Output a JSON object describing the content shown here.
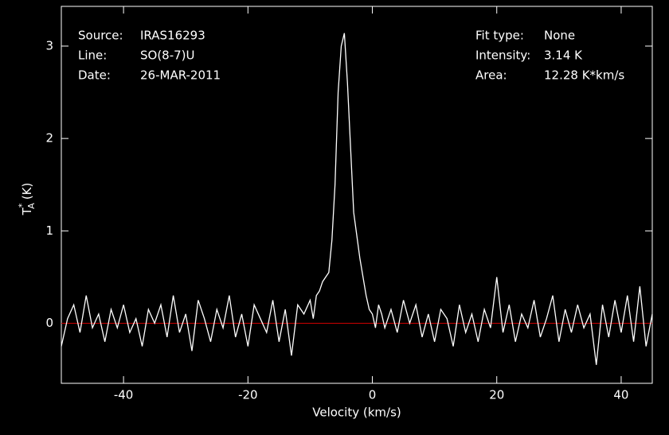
{
  "chart_data": {
    "type": "line",
    "xlabel": "Velocity (km/s)",
    "ylabel": {
      "symbol": "T",
      "superscript": "*",
      "subscript": "A",
      "unit": "(K)"
    },
    "annotations_left": [
      {
        "label": "Source:",
        "value": "IRAS16293"
      },
      {
        "label": "Line:",
        "value": "SO(8-7)U"
      },
      {
        "label": "Date:",
        "value": "26-MAR-2011"
      }
    ],
    "annotations_right": [
      {
        "label": "Fit type:",
        "value": "None"
      },
      {
        "label": "Intensity:",
        "value": "3.14 K"
      },
      {
        "label": "Area:",
        "value": "12.28 K*km/s"
      }
    ],
    "xlim": [
      -50,
      45
    ],
    "ylim": [
      -0.65,
      3.43
    ],
    "xticks": [
      -40,
      -20,
      0,
      20,
      40
    ],
    "yticks": [
      0,
      1,
      2,
      3
    ],
    "baseline": 0,
    "baseline_color": "#cc0000",
    "series": [
      {
        "color": "#ffffff",
        "x": [
          -50,
          -49,
          -48,
          -47,
          -46,
          -45,
          -44,
          -43,
          -42,
          -41,
          -40,
          -39,
          -38,
          -37,
          -36,
          -35,
          -34,
          -33,
          -32,
          -31,
          -30,
          -29,
          -28,
          -27,
          -26,
          -25,
          -24,
          -23,
          -22,
          -21,
          -20,
          -19,
          -18,
          -17,
          -16,
          -15,
          -14,
          -13,
          -12,
          -11,
          -10,
          -9.5,
          -9,
          -8.5,
          -8,
          -7.5,
          -7,
          -6.5,
          -6,
          -5.5,
          -5,
          -4.5,
          -4,
          -3.5,
          -3,
          -2.5,
          -2,
          -1.5,
          -1,
          -0.5,
          0,
          0.5,
          1,
          1.5,
          2,
          3,
          4,
          5,
          6,
          7,
          8,
          9,
          10,
          11,
          12,
          13,
          14,
          15,
          16,
          17,
          18,
          19,
          20,
          21,
          22,
          23,
          24,
          25,
          26,
          27,
          28,
          29,
          30,
          31,
          32,
          33,
          34,
          35,
          36,
          37,
          38,
          39,
          40,
          41,
          42,
          43,
          44,
          45
        ],
        "values": [
          -0.25,
          0.05,
          0.2,
          -0.1,
          0.3,
          -0.05,
          0.1,
          -0.2,
          0.15,
          -0.05,
          0.2,
          -0.1,
          0.05,
          -0.25,
          0.15,
          0.0,
          0.2,
          -0.15,
          0.3,
          -0.1,
          0.1,
          -0.3,
          0.25,
          0.05,
          -0.2,
          0.15,
          -0.05,
          0.3,
          -0.15,
          0.1,
          -0.25,
          0.2,
          0.05,
          -0.1,
          0.25,
          -0.2,
          0.15,
          -0.35,
          0.2,
          0.1,
          0.25,
          0.05,
          0.3,
          0.35,
          0.45,
          0.5,
          0.55,
          0.9,
          1.5,
          2.5,
          3.0,
          3.14,
          2.6,
          1.9,
          1.2,
          0.95,
          0.7,
          0.5,
          0.3,
          0.15,
          0.1,
          -0.05,
          0.2,
          0.1,
          -0.05,
          0.15,
          -0.1,
          0.25,
          0.0,
          0.2,
          -0.15,
          0.1,
          -0.2,
          0.15,
          0.05,
          -0.25,
          0.2,
          -0.1,
          0.1,
          -0.2,
          0.15,
          -0.05,
          0.5,
          -0.1,
          0.2,
          -0.2,
          0.1,
          -0.05,
          0.25,
          -0.15,
          0.05,
          0.3,
          -0.2,
          0.15,
          -0.1,
          0.2,
          -0.05,
          0.1,
          -0.45,
          0.2,
          -0.15,
          0.25,
          -0.1,
          0.3,
          -0.2,
          0.4,
          -0.25,
          0.1
        ]
      }
    ]
  }
}
